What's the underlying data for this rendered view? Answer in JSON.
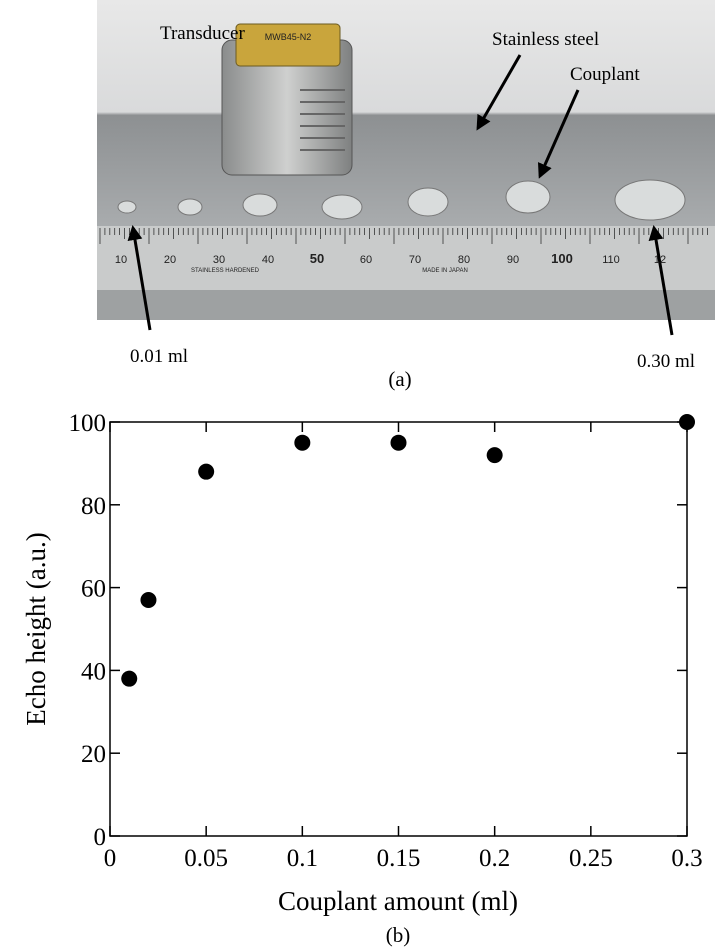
{
  "photo": {
    "labels": {
      "transducer": "Transducer",
      "stainless_steel": "Stainless steel",
      "couplant": "Couplant",
      "min_amount": "0.01 ml",
      "max_amount": "0.30 ml"
    },
    "transducer_marking": "MWB45-N2",
    "ruler_labels": [
      "10",
      "20",
      "30",
      "40",
      "50",
      "60",
      "70",
      "80",
      "90",
      "100",
      "110",
      "12"
    ],
    "ruler_texts": [
      "STAINLESS HARDENED",
      "MADE IN JAPAN"
    ],
    "caption": "(a)"
  },
  "chart_data": {
    "type": "scatter",
    "caption": "(b)",
    "x_label": "Couplant amount (ml)",
    "y_label": "Echo height (a.u.)",
    "x": [
      0.01,
      0.02,
      0.05,
      0.1,
      0.15,
      0.2,
      0.3
    ],
    "values": [
      38,
      57,
      88,
      95,
      95,
      92,
      100
    ],
    "color": "#000000",
    "xlim": [
      0,
      0.3
    ],
    "xticks": [
      0,
      0.05,
      0.1,
      0.15,
      0.2,
      0.25,
      0.3
    ],
    "ylim": [
      0,
      100
    ],
    "yticks": [
      0,
      20,
      40,
      60,
      80,
      100
    ]
  }
}
